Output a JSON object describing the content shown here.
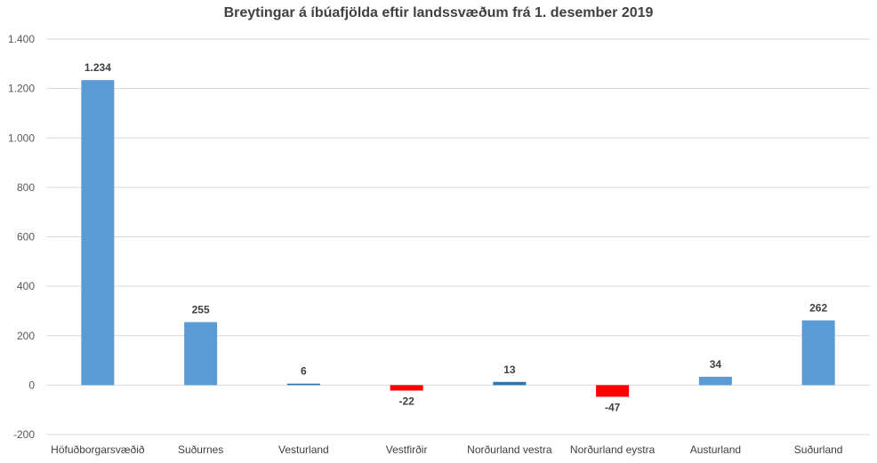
{
  "chart_data": {
    "type": "bar",
    "title": "Breytingar á íbúafjölda eftir landssvæðum frá 1. desember 2019",
    "xlabel": "",
    "ylabel": "",
    "categories": [
      "Höfuðborgarsvæðið",
      "Suðurnes",
      "Vesturland",
      "Vestfirðir",
      "Norðurland vestra",
      "Norðurland eystra",
      "Austurland",
      "Suðurland"
    ],
    "values": [
      1234,
      255,
      6,
      -22,
      13,
      -47,
      34,
      262
    ],
    "data_labels": [
      "1.234",
      "255",
      "6",
      "-22",
      "13",
      "-47",
      "34",
      "262"
    ],
    "ylim": [
      -200,
      1400
    ],
    "yticks": [
      -200,
      0,
      200,
      400,
      600,
      800,
      1000,
      1200,
      1400
    ],
    "ytick_labels": [
      "-200",
      "0",
      "200",
      "400",
      "600",
      "800",
      "1.000",
      "1.200",
      "1.400"
    ],
    "grid": true,
    "colors": {
      "positive_large": "#5b9bd5",
      "positive_small": "#2e75b6",
      "negative": "#ff0000"
    }
  }
}
